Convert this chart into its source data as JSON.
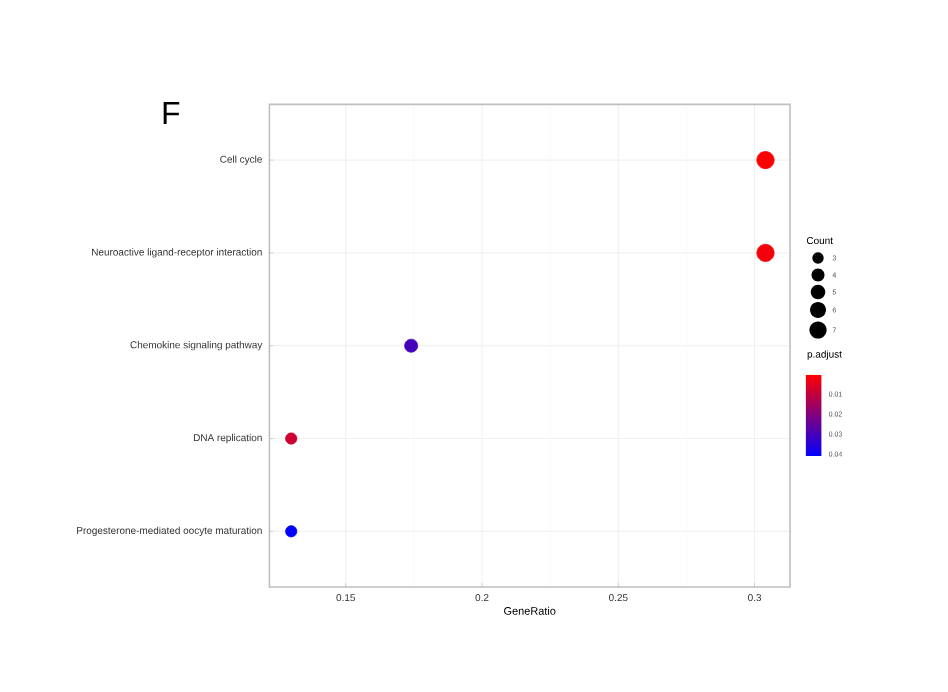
{
  "chart_data": {
    "type": "scatter",
    "title": "F",
    "xlabel": "GeneRatio",
    "orientation": "horizontal",
    "categories": [
      "Cell cycle",
      "Neuroactive ligand-receptor interaction",
      "Chemokine signaling pathway",
      "DNA replication",
      "Progesterone-mediated oocyte maturation"
    ],
    "values": [
      0.304,
      0.304,
      0.174,
      0.13,
      0.13
    ],
    "sizes": [
      7,
      7,
      4,
      3,
      3
    ],
    "cvalues": [
      0.001,
      0.002,
      0.03,
      0.008,
      0.041
    ],
    "legend_title": "Count",
    "size_legend": [
      3,
      4,
      5,
      6,
      7
    ],
    "clabel": "p.adjust",
    "clim": [
      0.0003,
      0.0413
    ],
    "cticks": [
      0.01,
      0.02,
      0.03,
      0.04
    ],
    "xlim": [
      0.122,
      0.313
    ],
    "xticks": [
      0.15,
      0.2,
      0.25,
      0.3
    ],
    "grid": true
  }
}
